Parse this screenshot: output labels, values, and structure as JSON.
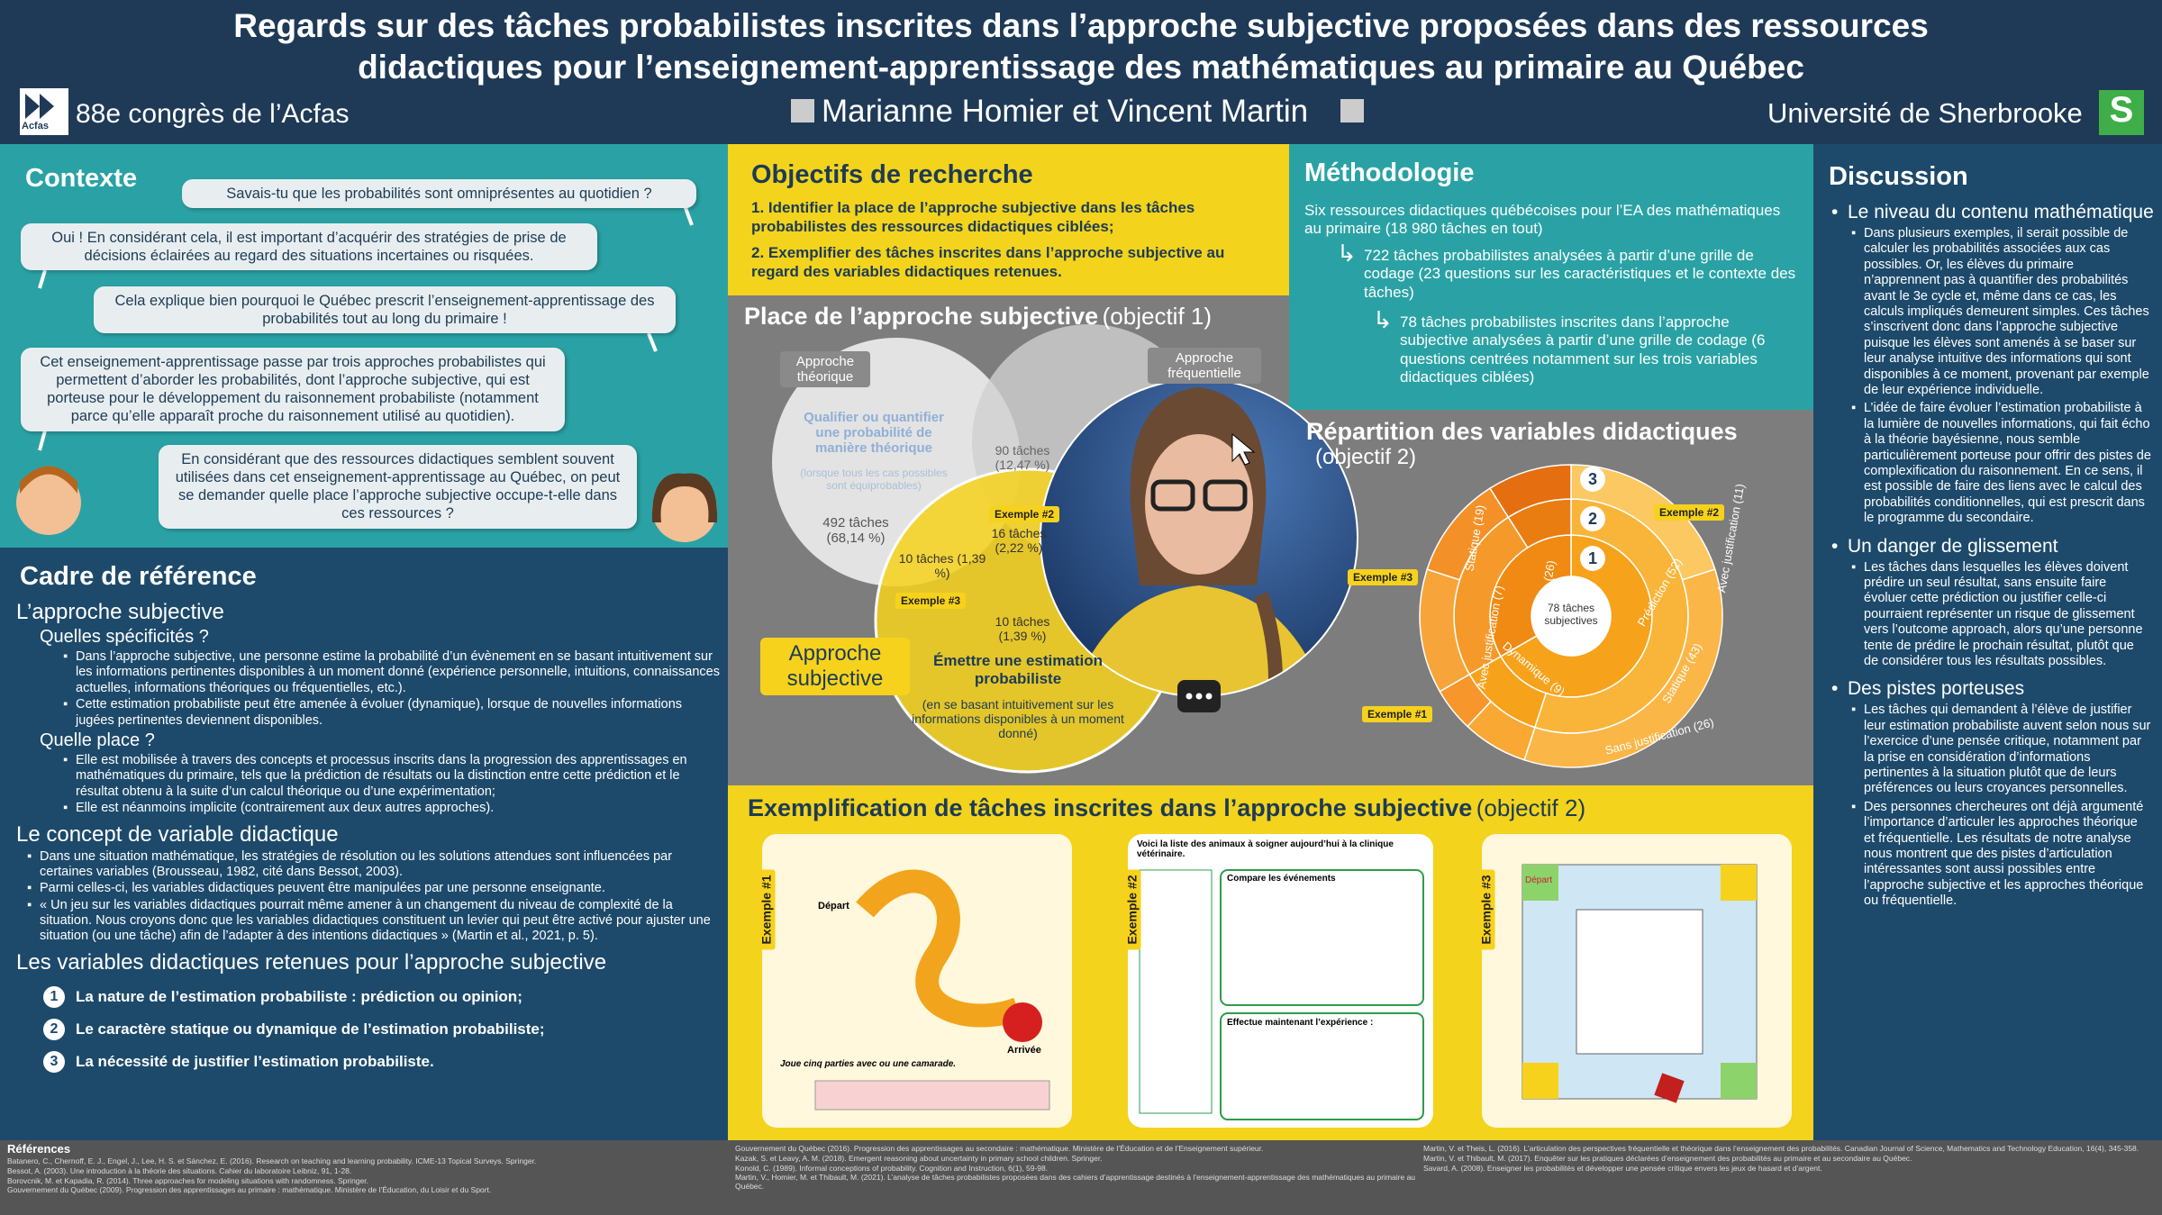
{
  "header": {
    "title_line1": "Regards sur des tâches probabilistes inscrites dans l’approche subjective proposées dans des ressources",
    "title_line2": "didactiques pour l’enseignement-apprentissage des mathématiques au primaire au Québec",
    "logo": "Acfas",
    "conference": "88e congrès de l’Acfas",
    "authors": "Marianne Homier et Vincent Martin",
    "university": "Université de Sherbrooke",
    "university_logo": "S"
  },
  "contexte": {
    "title": "Contexte",
    "bubbles": [
      "Savais-tu que les probabilités sont omniprésentes au quotidien ?",
      "Oui ! En considérant cela, il est important d’acquérir des stratégies de prise de décisions éclairées au regard des situations incertaines ou risquées.",
      "Cela explique bien pourquoi le Québec prescrit l’enseignement-apprentissage des probabilités tout au long du primaire !",
      "Cet enseignement-apprentissage passe par trois approches probabilistes qui permettent d’aborder les probabilités, dont l’approche subjective, qui est porteuse pour le développement du raisonnement probabiliste (notamment parce qu’elle apparaît proche du raisonnement utilisé au quotidien).",
      "En considérant que des ressources didactiques semblent souvent utilisées dans cet enseignement-apprentissage au Québec, on peut se demander quelle place l’approche subjective occupe-t-elle dans ces ressources ?"
    ]
  },
  "cadre": {
    "title": "Cadre de référence",
    "approche": {
      "heading": "L’approche subjective",
      "subsections": [
        {
          "heading": "Quelles spécificités ?",
          "bullets": [
            "Dans l’approche subjective, une personne estime la probabilité d’un évènement en se basant intuitivement sur les informations pertinentes disponibles à un moment donné (expérience personnelle, intuitions, connaissances actuelles, informations théoriques ou fréquentielles, etc.).",
            "Cette estimation probabiliste peut être amenée à évoluer (dynamique), lorsque de nouvelles informations jugées pertinentes deviennent disponibles."
          ]
        },
        {
          "heading": "Quelle place ?",
          "bullets": [
            "Elle est mobilisée à travers des concepts et processus inscrits dans la progression des apprentissages en mathématiques du primaire, tels que la prédiction de résultats ou la distinction entre cette prédiction et le résultat obtenu à la suite d’un calcul théorique ou d’une expérimentation;",
            "Elle est néanmoins implicite (contrairement aux deux autres approches)."
          ]
        }
      ]
    },
    "variable": {
      "heading": "Le concept de variable didactique",
      "bullets": [
        "Dans une situation mathématique, les stratégies de résolution ou les solutions attendues sont influencées par certaines variables (Brousseau, 1982, cité dans Bessot, 2003).",
        "Parmi celles-ci, les variables didactiques peuvent être manipulées par une personne enseignante.",
        "« Un jeu sur les variables didactiques pourrait même amener à un changement du niveau de complexité de la situation. Nous croyons donc que les variables didactiques constituent un levier qui peut être activé pour ajuster une situation (ou une tâche) afin de l’adapter à des intentions didactiques » (Martin et al., 2021, p. 5)."
      ]
    },
    "retenues": {
      "heading": "Les variables didactiques retenues pour l’approche subjective",
      "items": [
        {
          "number": "1",
          "text": "La nature de l’estimation probabiliste : prédiction ou opinion;"
        },
        {
          "number": "2",
          "text": "Le caractère statique ou dynamique de l’estimation probabiliste;"
        },
        {
          "number": "3",
          "text": "La nécessité de justifier l’estimation probabiliste."
        }
      ]
    }
  },
  "objectifs": {
    "title": "Objectifs de recherche",
    "items": [
      "1. Identifier la place de l’approche subjective dans les tâches probabilistes des ressources didactiques ciblées;",
      "2. Exemplifier des tâches inscrites dans l’approche subjective au regard des variables didactiques retenues."
    ]
  },
  "place": {
    "title": "Place de l’approche subjective",
    "suffix": "(objectif 1)",
    "theorique": "Approche théorique",
    "frequentielle": "Approche fréquentielle",
    "subjective": "Approche subjective",
    "qualifier": "Qualifier ou quantifier une probabilité de manière théorique",
    "qualifier_note": "(lorsque tous les cas possibles sont équiprobables)",
    "theo_only": "492 tâches (68,14 %)",
    "theo_freq": "90 tâches (12,47 %)",
    "theo_subj": "10 tâches (1,39 %)",
    "freq_subj": "16 tâches (2,22 %)",
    "subj_only": "10 tâches (1,39 %)",
    "emettre": "Émettre une estimation probabiliste",
    "emettre_note": "(en se basant intuitivement sur les informations disponibles à un moment donné)",
    "exemple_a": "Exemple #3",
    "exemple_b": "Exemple #2"
  },
  "methodologie": {
    "title": "Méthodologie",
    "intro": "Six ressources didactiques québécoises pour l’EA des mathématiques au primaire (18 980 tâches en tout)",
    "items": [
      "722 tâches probabilistes analysées à partir d’une grille de codage (23 questions sur les caractéristiques et le contexte des tâches)",
      "78 tâches probabilistes inscrites dans l’approche subjective analysées à partir d’une grille de codage (6 questions centrées notamment sur les trois variables didactiques ciblées)"
    ]
  },
  "repartition": {
    "title": "Répartition des variables didactiques",
    "subtitle": "(objectif 2)",
    "center": "78 tâches subjectives",
    "rings": [
      "1",
      "2",
      "3"
    ],
    "labels": [
      "Prédiction (52)",
      "Opinion (26)",
      "Statique (43)",
      "Dynamique (9)",
      "Statique (19)",
      "Sans justification (26)",
      "Avec justification (11)",
      "Avec justification (7)"
    ],
    "examples": [
      "Exemple #2",
      "Exemple #3",
      "Exemple #1"
    ]
  },
  "discussion": {
    "title": "Discussion",
    "sections": [
      {
        "heading": "Le niveau du contenu mathématique",
        "bullets": [
          "Dans plusieurs exemples, il serait possible de calculer les probabilités associées aux cas possibles. Or, les élèves du primaire n’apprennent pas à quantifier des probabilités avant le 3e cycle et, même dans ce cas, les calculs impliqués demeurent simples. Ces tâches s’inscrivent donc dans l’approche subjective puisque les élèves sont amenés à se baser sur leur analyse intuitive des informations qui sont disponibles à ce moment, provenant par exemple de leur expérience individuelle.",
          "L’idée de faire évoluer l’estimation probabiliste à la lumière de nouvelles informations, qui fait écho à la théorie bayésienne, nous semble particulièrement porteuse pour offrir des pistes de complexification du raisonnement. En ce sens, il est possible de faire des liens avec le calcul des probabilités conditionnelles, qui est prescrit dans le programme du secondaire."
        ]
      },
      {
        "heading": "Un danger de glissement",
        "bullets": [
          "Les tâches dans lesquelles les élèves doivent prédire un seul résultat, sans ensuite faire évoluer cette prédiction ou justifier celle-ci pourraient représenter un risque de glissement vers l’outcome approach, alors qu’une personne tente de prédire le prochain résultat, plutôt que de considérer tous les résultats possibles."
        ]
      },
      {
        "heading": "Des pistes porteuses",
        "bullets": [
          "Les tâches qui demandent à l’élève de justifier leur estimation probabiliste auvent selon nous sur l’exercice d’une pensée critique, notamment par la prise en considération d’informations pertinentes à la situation plutôt que de leurs préférences ou leurs croyances personnelles.",
          "Des personnes chercheures ont déjà argumenté l’importance d’articuler les approches théorique et fréquentielle. Les résultats de notre analyse nous montrent que des pistes d’articulation intéressantes sont aussi possibles entre l’approche subjective et les approches théorique ou fréquentielle."
        ]
      }
    ]
  },
  "exemplification": {
    "title": "Exemplification de tâches inscrites dans l’approche subjective",
    "suffix": "(objectif 2)",
    "examples": [
      {
        "label": "Exemple #1",
        "start": "Départ",
        "end": "Arrivée",
        "caption": "Joue cinq parties avec ou une camarade."
      },
      {
        "label": "Exemple #2",
        "header": "Voici la liste des animaux à soigner aujourd’hui à la clinique vétérinaire.",
        "box1": "Compare les événements",
        "box2": "Effectue maintenant l’expérience :"
      },
      {
        "label": "Exemple #3",
        "start": "Départ"
      }
    ]
  },
  "references": {
    "title": "Références",
    "columns": [
      [
        "Batanero, C., Chernoff, E. J., Engel, J., Lee, H. S. et Sánchez, E. (2016). Research on teaching and learning probability. ICME-13 Topical Surveys. Springer.",
        "Bessot, A. (2003). Une introduction à la théorie des situations. Cahier du laboratoire Leibniz, 91, 1-28.",
        "Borovcnik, M. et Kapadia, R. (2014). Three approaches for modeling situations with randomness. Springer.",
        "Gouvernement du Québec (2009). Progression des apprentissages au primaire : mathématique. Ministère de l’Éducation, du Loisir et du Sport."
      ],
      [
        "Gouvernement du Québec (2016). Progression des apprentissages au secondaire : mathématique. Ministère de l’Éducation et de l’Enseignement supérieur.",
        "Kazak, S. et Leavy, A. M. (2018). Emergent reasoning about uncertainty in primary school children. Springer.",
        "Konold, C. (1989). Informal conceptions of probability. Cognition and Instruction, 6(1), 59-98.",
        "Martin, V., Homier, M. et Thibault, M. (2021). L’analyse de tâches probabilistes proposées dans des cahiers d’apprentissage destinés à l’enseignement-apprentissage des mathématiques au primaire au Québec."
      ],
      [
        "Martin, V. et Theis, L. (2016). L’articulation des perspectives fréquentielle et théorique dans l’enseignement des probabilités. Canadian Journal of Science, Mathematics and Technology Education, 16(4), 345-358.",
        "Martin, V. et Thibault, M. (2017). Enquêter sur les pratiques déclarées d’enseignement des probabilités au primaire et au secondaire au Québec.",
        "Savard, A. (2008). Enseigner les probabilités et développer une pensée critique envers les jeux de hasard et d’argent."
      ]
    ]
  }
}
